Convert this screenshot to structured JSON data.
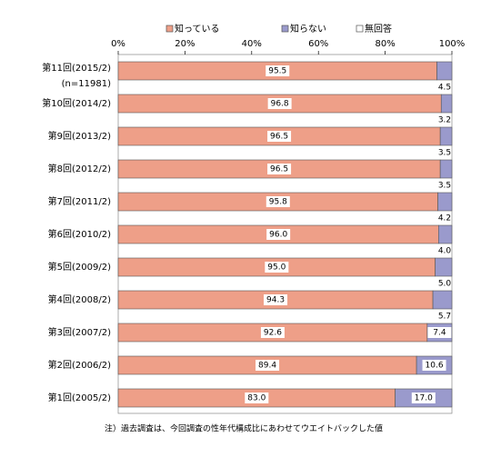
{
  "chart_data": {
    "type": "stacked-bar-horizontal",
    "categories": [
      "第11回(2015/2)",
      "第10回(2014/2)",
      "第9回(2013/2)",
      "第8回(2012/2)",
      "第7回(2011/2)",
      "第6回(2010/2)",
      "第5回(2009/2)",
      "第4回(2008/2)",
      "第3回(2007/2)",
      "第2回(2006/2)",
      "第1回(2005/2)"
    ],
    "sample_note": "(n=11981)",
    "series": [
      {
        "name": "知っている",
        "color": "#ee9f88",
        "values": [
          95.5,
          96.8,
          96.5,
          96.5,
          95.8,
          96.0,
          95.0,
          94.3,
          92.6,
          89.4,
          83.0
        ],
        "value_labels": [
          "95.5",
          "96.8",
          "96.5",
          "96.5",
          "95.8",
          "96.0",
          "95.0",
          "94.3",
          "92.6",
          "89.4",
          "83.0"
        ]
      },
      {
        "name": "知らない",
        "color": "#9a9acc",
        "values": [
          4.5,
          3.2,
          3.5,
          3.5,
          4.2,
          4.0,
          5.0,
          5.7,
          7.4,
          10.6,
          17.0
        ],
        "value_labels": [
          "4.5",
          "3.2",
          "3.5",
          "3.5",
          "4.2",
          "4.0",
          "5.0",
          "5.7",
          "7.4",
          "10.6",
          "17.0"
        ]
      },
      {
        "name": "無回答",
        "color": "#ffffff",
        "values": [
          0,
          0,
          0,
          0,
          0,
          0,
          0,
          0,
          0,
          0,
          0
        ]
      }
    ],
    "xlim": [
      0,
      100
    ],
    "xticks": [
      {
        "value": 0,
        "label": "0%"
      },
      {
        "value": 20,
        "label": "20%"
      },
      {
        "value": 40,
        "label": "40%"
      },
      {
        "value": 60,
        "label": "60%"
      },
      {
        "value": 80,
        "label": "80%"
      },
      {
        "value": 100,
        "label": "100%"
      }
    ],
    "footnote": "注）過去調査は、今回調査の性年代構成比にあわせてウエイトバックした値"
  }
}
